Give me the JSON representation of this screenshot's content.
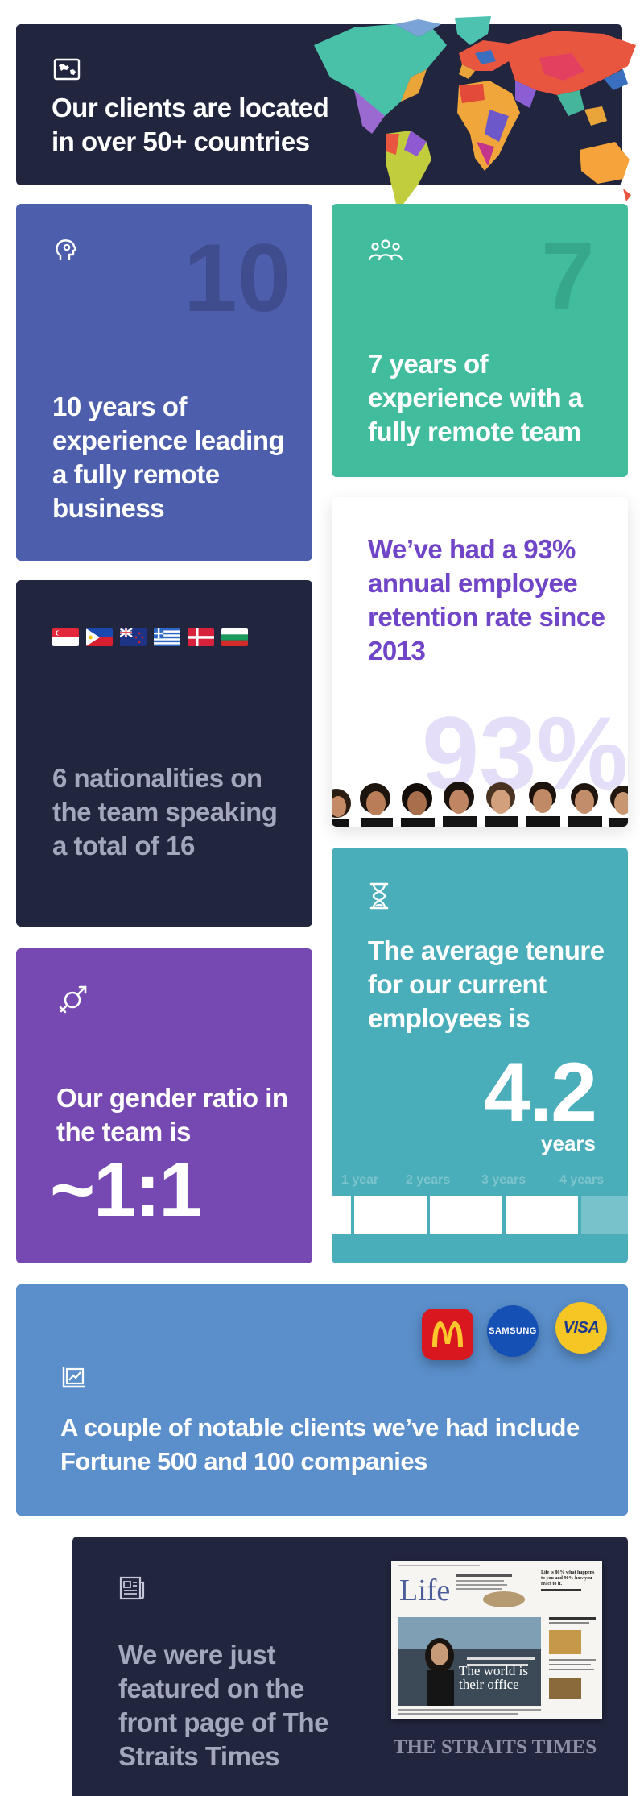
{
  "countries_card": {
    "icon": "map-icon",
    "line1": "Our clients are located",
    "line2": "in over 50+ countries"
  },
  "experience_card": {
    "icon": "head-gear-icon",
    "ghost_number": "10",
    "text": "10 years of experience leading a fully remote business"
  },
  "remote_team_card": {
    "icon": "team-icon",
    "ghost_number": "7",
    "text": "7 years of experience with a fully remote team"
  },
  "retention_card": {
    "text": "We’ve had a 93% annual employee retention rate since 2013",
    "big_number": "93%"
  },
  "nationalities_card": {
    "flags": [
      "singapore-flag",
      "philippines-flag",
      "new-zealand-flag",
      "greece-flag",
      "denmark-flag",
      "bulgaria-flag"
    ],
    "text": "6 nationalities on the team speaking a total of 16"
  },
  "gender_card": {
    "icon": "gender-icon",
    "text": "Our gender ratio in the team is",
    "ratio": "~1:1"
  },
  "tenure_card": {
    "icon": "hourglass-icon",
    "text": "The average tenure for our current employees is",
    "value": "4.2",
    "unit": "years",
    "scale_labels": [
      "1 year",
      "2 years",
      "3 years",
      "4 years"
    ],
    "scale_max_years": 5,
    "average_years": 4.2
  },
  "clients_card": {
    "icon": "chart-icon",
    "brands": [
      "mcdonalds-logo",
      "samsung-logo",
      "visa-logo"
    ],
    "samsung_label": "SAMSUNG",
    "visa_label": "VISA",
    "text": "A couple of notable clients we’ve had include Fortune 500 and 100 companies"
  },
  "straits_card": {
    "icon": "newspaper-icon",
    "text": "We were just featured on the front page of The Straits Times",
    "masthead": "THE STRAITS TIMES",
    "paper": {
      "section": "Life",
      "headline": "The world is their office",
      "side_headline": "Life is 80% what happens to you and 90% how you react to it."
    }
  },
  "colors": {
    "navy": "#21253e",
    "indigo": "#4d5eac",
    "green": "#41bd9e",
    "purple": "#7549b1",
    "teal": "#4aaeba",
    "blue": "#5a8fcb",
    "violet_text": "#7145c7"
  }
}
